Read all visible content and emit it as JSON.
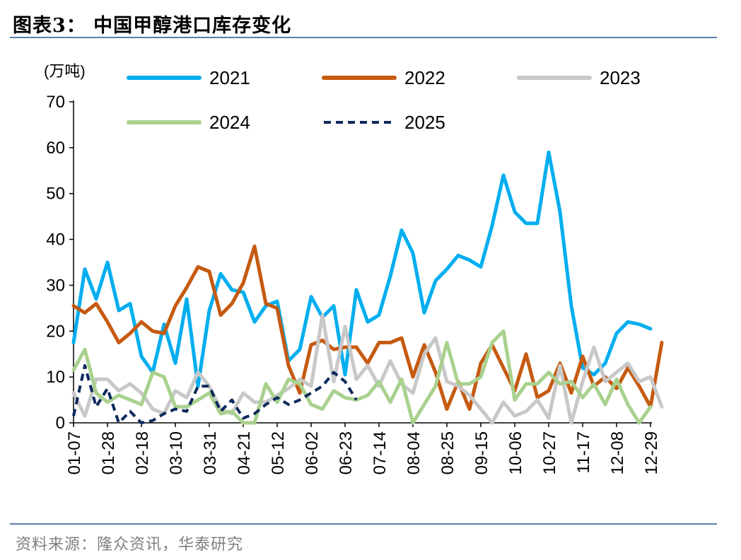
{
  "title": "图表3：  中国甲醇港口库存变化",
  "source": "资料来源：隆众资讯，华泰研究",
  "chart_data": {
    "type": "line",
    "ylabel": "(万吨)",
    "ylim": [
      0,
      70
    ],
    "yticks": [
      0,
      10,
      20,
      30,
      40,
      50,
      60,
      70
    ],
    "x_labels": [
      "01-07",
      "01-28",
      "02-18",
      "03-10",
      "03-31",
      "04-21",
      "05-12",
      "06-02",
      "06-23",
      "07-14",
      "08-04",
      "08-25",
      "09-15",
      "10-06",
      "10-27",
      "11-17",
      "12-08",
      "12-29"
    ],
    "grid": false,
    "legend": "top",
    "series": [
      {
        "name": "2021",
        "color": "#00aeef",
        "dash": false,
        "values": [
          17.5,
          33.5,
          27,
          35,
          24.5,
          26,
          14.5,
          11,
          21.5,
          13,
          27,
          8,
          24.5,
          32.5,
          29,
          28.5,
          22,
          25.5,
          26.5,
          13.5,
          16,
          27.5,
          23,
          25.5,
          10.5,
          29,
          22,
          23.5,
          32,
          42,
          37,
          24,
          31,
          33.5,
          36.5,
          35.5,
          34,
          43,
          54,
          46,
          43.5,
          43.5,
          59,
          46,
          25.5,
          12,
          10.5,
          13,
          19.5,
          22,
          21.5,
          20.5
        ]
      },
      {
        "name": "2022",
        "color": "#c55a11",
        "dash": false,
        "values": [
          25.5,
          24,
          26,
          22,
          17.5,
          19.5,
          22,
          20,
          19.5,
          25.5,
          29.5,
          34,
          33,
          23.5,
          26,
          30.5,
          38.5,
          26,
          25,
          12.5,
          6.5,
          17,
          18,
          16,
          16.5,
          16.5,
          13,
          17.5,
          17.5,
          18.5,
          10,
          17,
          11,
          3,
          9,
          3,
          13,
          17,
          12,
          7,
          15,
          5.5,
          7,
          13,
          6.5,
          14.5,
          8,
          10,
          7.5,
          12,
          8,
          3.5,
          17.5
        ]
      },
      {
        "name": "2023",
        "color": "#c8c8c8",
        "dash": false,
        "values": [
          6.5,
          1.5,
          9.5,
          9.5,
          7,
          8.5,
          6.5,
          3,
          2,
          7,
          5.5,
          11,
          8,
          3,
          2,
          6.5,
          4.5,
          4.5,
          6,
          7.5,
          9.5,
          8,
          23.5,
          9,
          21,
          9.5,
          12.5,
          8,
          13.5,
          8.5,
          6.5,
          15,
          18.5,
          9,
          8,
          6,
          3,
          0,
          4.5,
          1.5,
          2.5,
          5,
          1,
          12.5,
          0,
          9,
          16.5,
          9,
          11,
          13,
          9,
          10,
          3.5
        ]
      },
      {
        "name": "2024",
        "color": "#a9d18e",
        "dash": false,
        "values": [
          11.5,
          16,
          6.5,
          4.5,
          6,
          5,
          4,
          11,
          10,
          3.5,
          3.5,
          5,
          6.5,
          2,
          2.5,
          0,
          0,
          8.5,
          4.5,
          9.5,
          8.5,
          4,
          3,
          7,
          5.5,
          5,
          6,
          9,
          4.5,
          9.5,
          0,
          4,
          8,
          17.5,
          8.5,
          8.5,
          10,
          17.5,
          20,
          5,
          8.5,
          8.5,
          11,
          8.5,
          9,
          5.5,
          8.5,
          4,
          9.5,
          4,
          0,
          3.5
        ]
      },
      {
        "name": "2025",
        "color": "#0d2a5c",
        "dash": true,
        "values": [
          1.5,
          12.5,
          3.5,
          7.5,
          0,
          2.5,
          0,
          0.5,
          2,
          3,
          2.5,
          8,
          8,
          2.5,
          5,
          1,
          2,
          4,
          5.5,
          4,
          5,
          6.5,
          8,
          11,
          9,
          5
        ]
      }
    ]
  }
}
